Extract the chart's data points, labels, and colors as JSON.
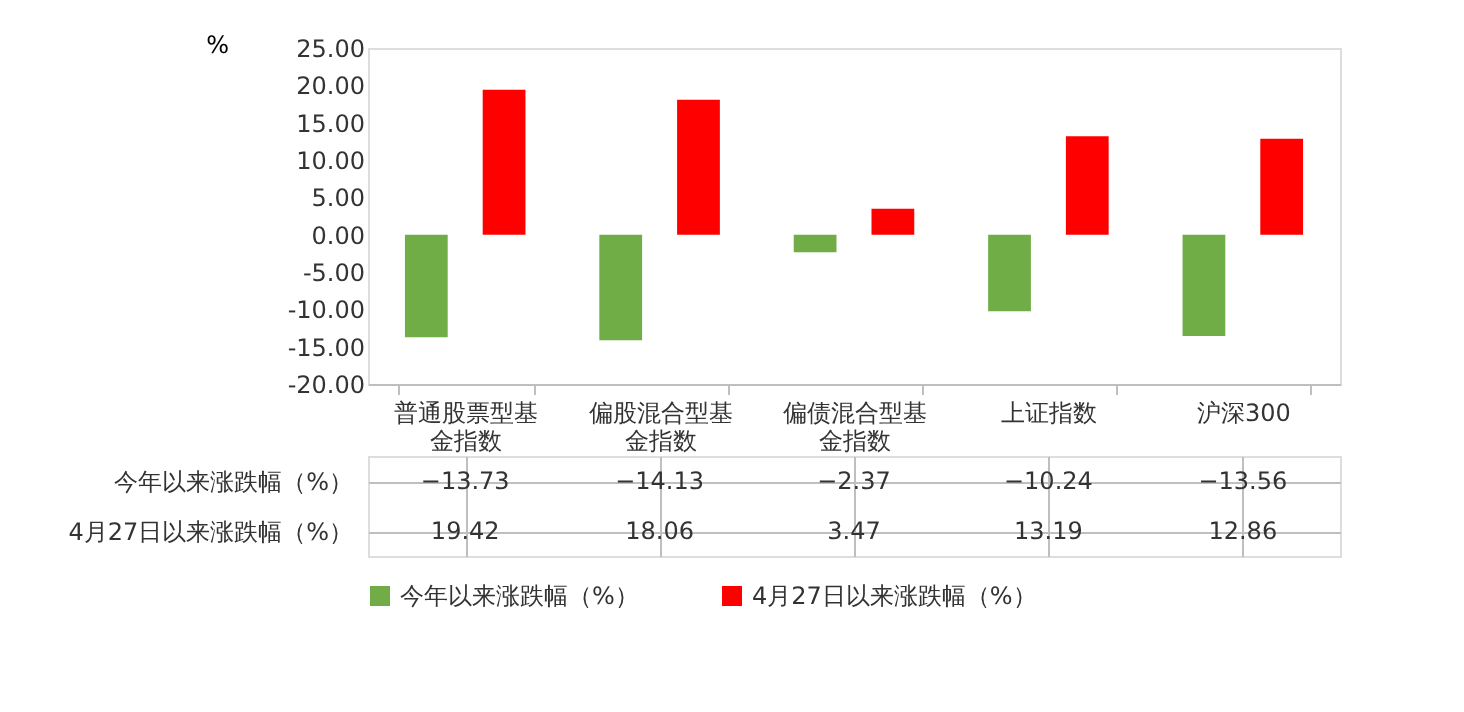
{
  "chart_data": {
    "type": "bar",
    "ylabel": "%",
    "categories": [
      "普通股票型基金指数",
      "偏股混合型基金指数",
      "偏债混合型基金指数",
      "上证指数",
      "沪深300"
    ],
    "series": [
      {
        "name": "今年以来涨跌幅（%）",
        "color": "#70ad47",
        "values": [
          -13.73,
          -14.13,
          -2.37,
          -10.24,
          -13.56
        ]
      },
      {
        "name": "4月27日以来涨跌幅（%）",
        "color": "#ff0000",
        "values": [
          19.42,
          18.06,
          3.47,
          13.19,
          12.86
        ]
      }
    ],
    "ylim": [
      -20,
      25
    ],
    "yticks": [
      {
        "value": -20,
        "label": "-20.00"
      },
      {
        "value": -15,
        "label": "-15.00"
      },
      {
        "value": -10,
        "label": "-10.00"
      },
      {
        "value": -5,
        "label": "-5.00"
      },
      {
        "value": 0,
        "label": "0.00"
      },
      {
        "value": 5,
        "label": "5.00"
      },
      {
        "value": 10,
        "label": "10.00"
      },
      {
        "value": 15,
        "label": "15.00"
      },
      {
        "value": 20,
        "label": "20.00"
      },
      {
        "value": 25,
        "label": "25.00"
      }
    ],
    "data_labels": true,
    "grid": false,
    "legend": "bottom"
  }
}
